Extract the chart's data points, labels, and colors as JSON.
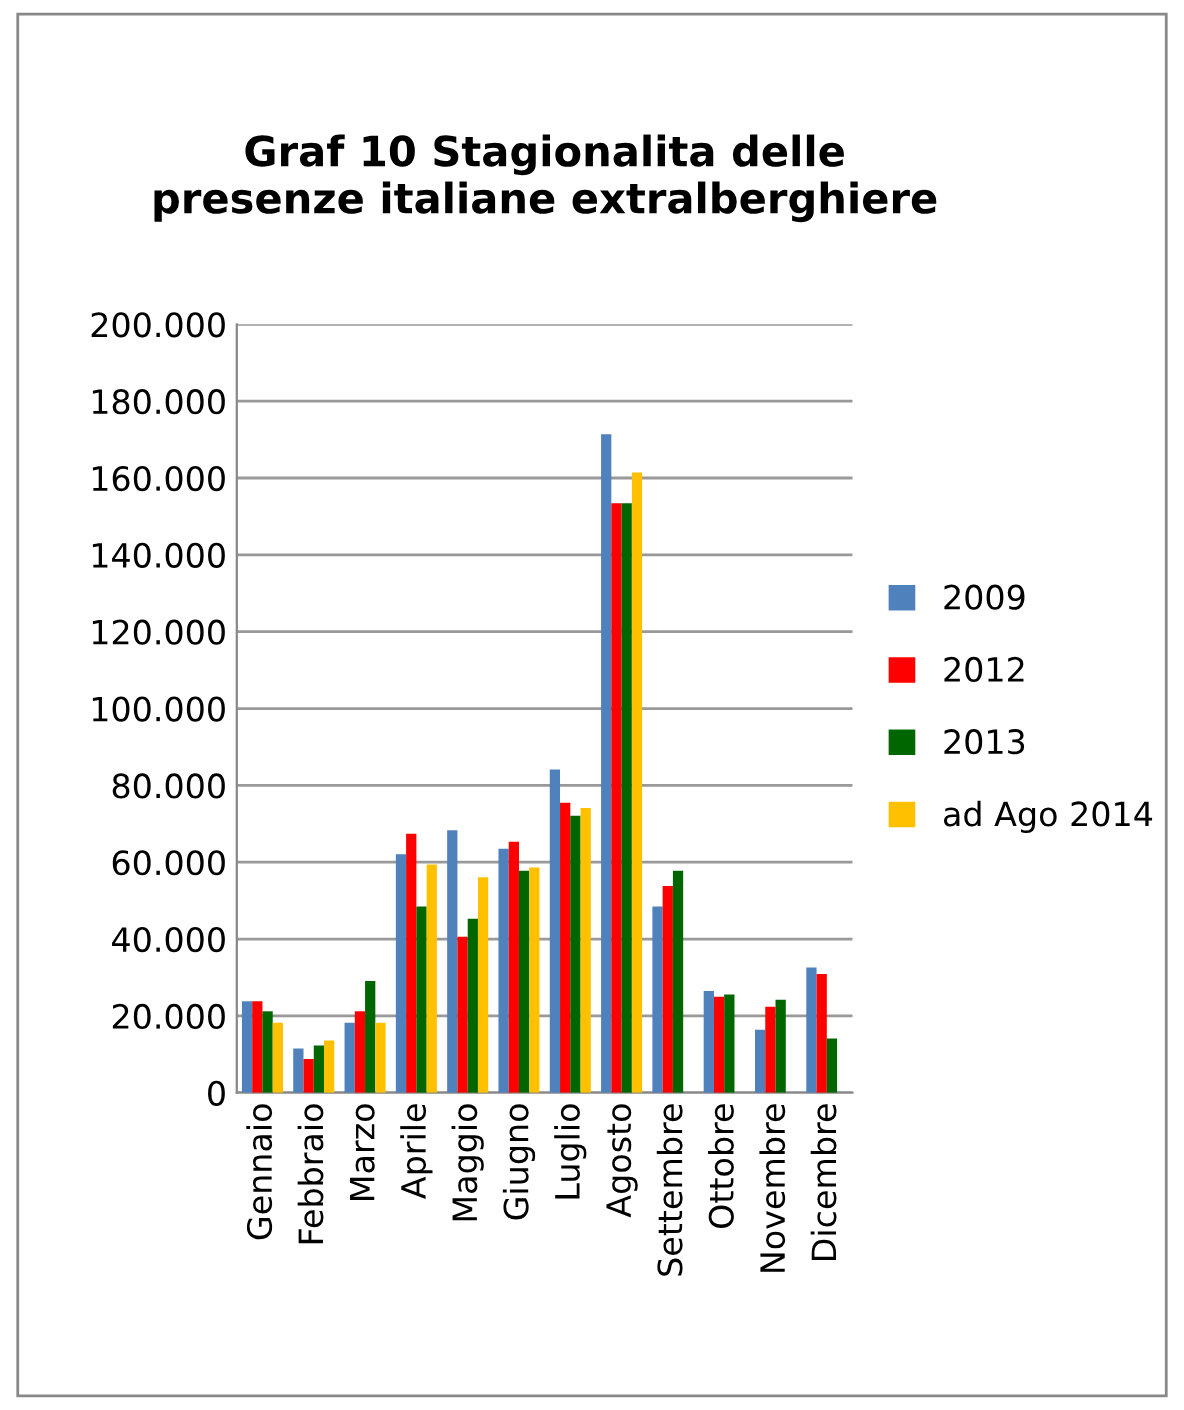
{
  "chart_data": {
    "type": "bar",
    "title": "Graf 10 Stagionalita delle\npresenze italiane extralberghiere",
    "categories": [
      "Gennaio",
      "Febbraio",
      "Marzo",
      "Aprile",
      "Maggio",
      "Giugno",
      "Luglio",
      "Agosto",
      "Settembre",
      "Ottobre",
      "Novembre",
      "Dicembre"
    ],
    "series": [
      {
        "name": "2009",
        "color": "#4f81bd",
        "values": [
          23800,
          11500,
          18200,
          62100,
          68300,
          63500,
          84100,
          171400,
          48500,
          26500,
          16400,
          32600
        ]
      },
      {
        "name": "2012",
        "color": "#ff0000",
        "values": [
          23800,
          8800,
          21200,
          67400,
          40600,
          65300,
          75500,
          153400,
          53800,
          25000,
          22400,
          30900
        ]
      },
      {
        "name": "2013",
        "color": "#006600",
        "values": [
          21200,
          12300,
          29100,
          48500,
          45300,
          57800,
          72100,
          153400,
          57800,
          25600,
          24200,
          14100
        ]
      },
      {
        "name": "ad Ago 2014",
        "color": "#ffc000",
        "values": [
          18200,
          13600,
          18200,
          59400,
          56100,
          58600,
          74100,
          161400,
          null,
          null,
          null,
          null
        ]
      }
    ],
    "ylim": [
      0,
      200000
    ],
    "yticks": [
      0,
      {
        "value": 20000,
        "label": "20.000"
      },
      {
        "value": 40000,
        "label": "40.000"
      },
      {
        "value": 60000,
        "label": "60.000"
      },
      {
        "value": 80000,
        "label": "80.000"
      },
      {
        "value": 100000,
        "label": "100.000"
      },
      {
        "value": 120000,
        "label": "120.000"
      },
      {
        "value": 140000,
        "label": "140.000"
      },
      {
        "value": 160000,
        "label": "160.000"
      },
      {
        "value": 180000,
        "label": "180.000"
      },
      {
        "value": 200000,
        "label": "200.000"
      }
    ],
    "grid": "y",
    "legend": "right"
  }
}
